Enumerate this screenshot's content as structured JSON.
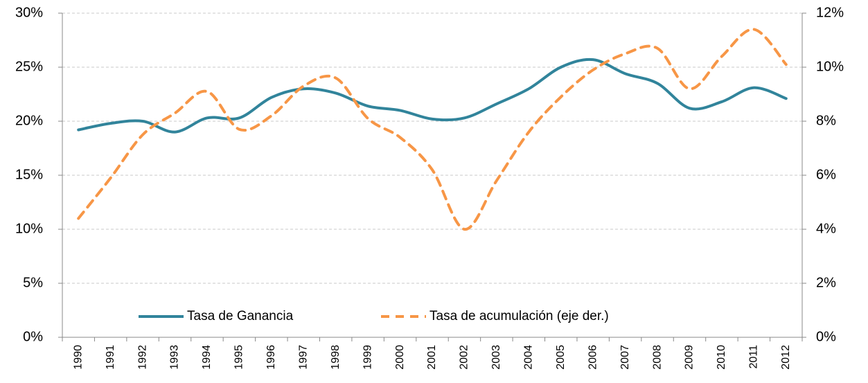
{
  "chart_data": {
    "type": "line",
    "categories": [
      "1990",
      "1991",
      "1992",
      "1993",
      "1994",
      "1995",
      "1996",
      "1997",
      "1998",
      "1999",
      "2000",
      "2001",
      "2002",
      "2003",
      "2004",
      "2005",
      "2006",
      "2007",
      "2008",
      "2009",
      "2010",
      "2011",
      "2012"
    ],
    "series": [
      {
        "name": "Tasa de Ganancia",
        "color": "#31849b",
        "style": "solid",
        "values": [
          19.2,
          19.8,
          20.0,
          19.0,
          20.3,
          20.3,
          22.2,
          23.0,
          22.6,
          21.4,
          21.0,
          20.2,
          20.3,
          21.6,
          23.0,
          25.0,
          25.7,
          24.4,
          23.5,
          21.2,
          21.8,
          23.1,
          22.1
        ]
      },
      {
        "name": "Tasa de acumulación (eje der.)",
        "color": "#f79646",
        "style": "dashed",
        "axis": "y2",
        "values": [
          4.4,
          5.9,
          7.5,
          8.3,
          9.1,
          7.7,
          8.2,
          9.3,
          9.6,
          8.1,
          7.4,
          6.2,
          4.0,
          5.8,
          7.6,
          8.9,
          9.9,
          10.5,
          10.7,
          9.2,
          10.4,
          11.4,
          10.1
        ]
      }
    ],
    "ylim": [
      0,
      30
    ],
    "yticks": [
      {
        "value": 0,
        "label": "0%"
      },
      {
        "value": 5,
        "label": "5%"
      },
      {
        "value": 10,
        "label": "10%"
      },
      {
        "value": 15,
        "label": "15%"
      },
      {
        "value": 20,
        "label": "20%"
      },
      {
        "value": 25,
        "label": "25%"
      },
      {
        "value": 30,
        "label": "30%"
      }
    ],
    "y2lim": [
      0,
      12
    ],
    "y2ticks": [
      {
        "value": 0,
        "label": "0%"
      },
      {
        "value": 2,
        "label": "2%"
      },
      {
        "value": 4,
        "label": "4%"
      },
      {
        "value": 6,
        "label": "6%"
      },
      {
        "value": 8,
        "label": "8%"
      },
      {
        "value": 10,
        "label": "10%"
      },
      {
        "value": 12,
        "label": "12%"
      }
    ],
    "grid": true,
    "legend": "bottom"
  }
}
